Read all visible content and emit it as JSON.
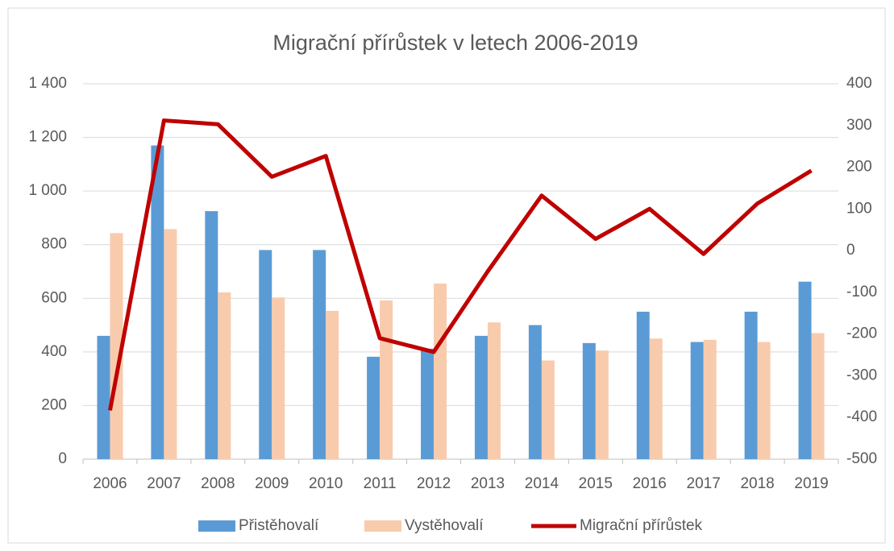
{
  "chart_data": {
    "type": "bar_line",
    "title": "Migrační přírůstek v letech 2006-2019",
    "categories": [
      "2006",
      "2007",
      "2008",
      "2009",
      "2010",
      "2011",
      "2012",
      "2013",
      "2014",
      "2015",
      "2016",
      "2017",
      "2018",
      "2019"
    ],
    "series": [
      {
        "name": "Přistěhovalí",
        "color": "#5b9bd5",
        "kind": "bar",
        "values": [
          460,
          1170,
          925,
          780,
          780,
          382,
          412,
          460,
          500,
          433,
          550,
          437,
          550,
          662
        ]
      },
      {
        "name": "Vystěhovalí",
        "color": "#f8cbad",
        "kind": "bar",
        "values": [
          843,
          858,
          622,
          603,
          553,
          592,
          655,
          510,
          368,
          405,
          450,
          445,
          437,
          470
        ]
      },
      {
        "name": "Migrační přírůstek",
        "color": "#c00000",
        "kind": "line",
        "axis": "y2",
        "values": [
          -383,
          312,
          303,
          177,
          227,
          -210,
          -243,
          -50,
          132,
          28,
          100,
          -8,
          113,
          192
        ]
      }
    ],
    "ylim": [
      0,
      1400
    ],
    "yticks": [
      0,
      200,
      400,
      600,
      800,
      {
        "value": 1000,
        "label": "1 000"
      },
      {
        "value": 1200,
        "label": "1 200"
      },
      {
        "value": 1400,
        "label": "1 400"
      }
    ],
    "y2lim": [
      -500,
      400
    ],
    "y2ticks": [
      -500,
      -400,
      -300,
      -200,
      -100,
      0,
      100,
      200,
      300,
      400
    ],
    "grid": true,
    "legend": "bottom"
  }
}
